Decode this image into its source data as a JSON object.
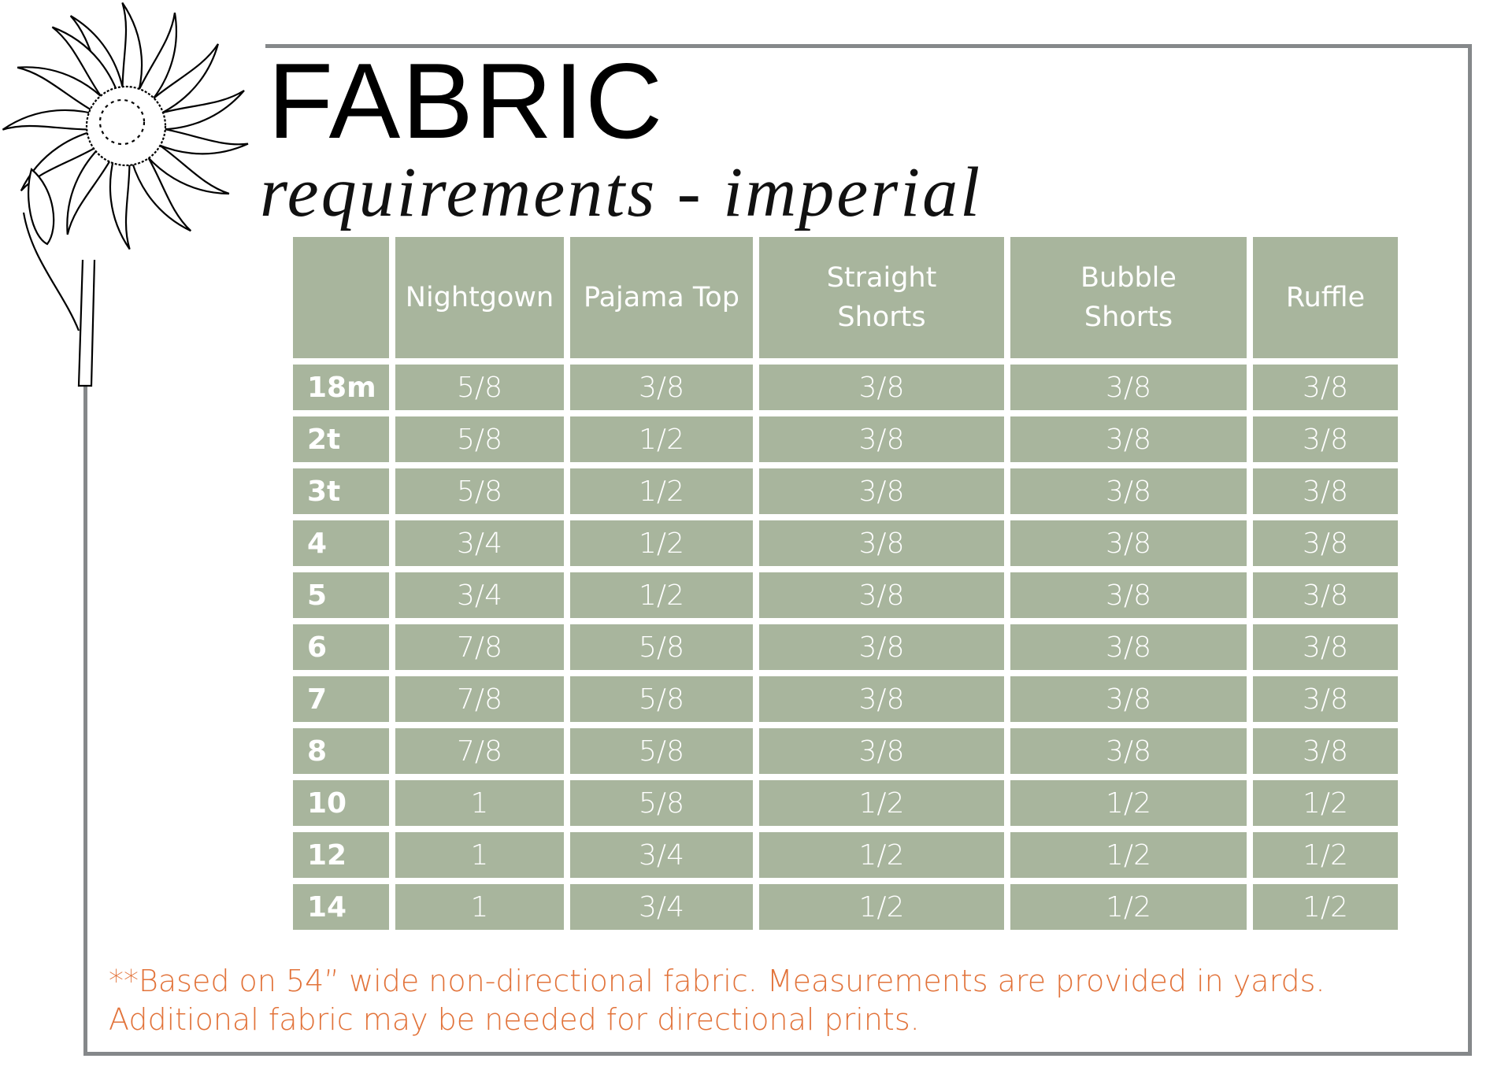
{
  "title": "FABRIC",
  "subtitle": "requirements - imperial",
  "colors": {
    "cell": "#a8b59d",
    "cell_text": "#ffffff",
    "note": "#e2733a",
    "frame": "#85888a"
  },
  "decoration": "sunflower-illustration",
  "table": {
    "columns": [
      "",
      "Nightgown",
      "Pajama Top",
      "Straight Shorts",
      "Bubble Shorts",
      "Ruffle"
    ],
    "rows": [
      [
        "18m",
        "5/8",
        "3/8",
        "3/8",
        "3/8",
        "3/8"
      ],
      [
        "2t",
        "5/8",
        "1/2",
        "3/8",
        "3/8",
        "3/8"
      ],
      [
        "3t",
        "5/8",
        "1/2",
        "3/8",
        "3/8",
        "3/8"
      ],
      [
        "4",
        "3/4",
        "1/2",
        "3/8",
        "3/8",
        "3/8"
      ],
      [
        "5",
        "3/4",
        "1/2",
        "3/8",
        "3/8",
        "3/8"
      ],
      [
        "6",
        "7/8",
        "5/8",
        "3/8",
        "3/8",
        "3/8"
      ],
      [
        "7",
        "7/8",
        "5/8",
        "3/8",
        "3/8",
        "3/8"
      ],
      [
        "8",
        "7/8",
        "5/8",
        "3/8",
        "3/8",
        "3/8"
      ],
      [
        "10",
        "1",
        "5/8",
        "1/2",
        "1/2",
        "1/2"
      ],
      [
        "12",
        "1",
        "3/4",
        "1/2",
        "1/2",
        "1/2"
      ],
      [
        "14",
        "1",
        "3/4",
        "1/2",
        "1/2",
        "1/2"
      ]
    ]
  },
  "note": {
    "line1": "**Based on 54” wide non-directional fabric.  Measurements are provided in yards.",
    "line2": "Additional fabric may be needed for directional prints."
  }
}
